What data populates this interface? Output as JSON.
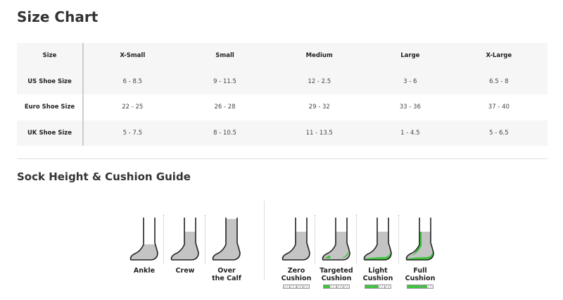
{
  "title": "Size Chart",
  "table": {
    "headers": [
      "Size",
      "X-Small",
      "Small",
      "Medium",
      "Large",
      "X-Large"
    ],
    "rows": [
      [
        "US Shoe Size",
        "6 - 8.5",
        "9 - 11.5",
        "12 - 2.5",
        "3 - 6",
        "6.5 - 8"
      ],
      [
        "Euro Shoe Size",
        "22 - 25",
        "26 - 28",
        "29 - 32",
        "33 - 36",
        "37 - 40"
      ],
      [
        "UK Shoe Size",
        "5 - 7.5",
        "8 - 10.5",
        "11 - 13.5",
        "1 - 4.5",
        "5 - 6.5"
      ]
    ]
  },
  "guide_title": "Sock Height & Cushion Guide",
  "heights": [
    {
      "l1": "Ankle",
      "l2": "",
      "level": "ankle"
    },
    {
      "l1": "Crew",
      "l2": "",
      "level": "crew"
    },
    {
      "l1": "Over",
      "l2": "the Calf",
      "level": "calf"
    }
  ],
  "cushions": [
    {
      "l1": "Zero",
      "l2": "Cushion",
      "level": 0
    },
    {
      "l1": "Targeted",
      "l2": "Cushion",
      "level": 1
    },
    {
      "l1": "Light",
      "l2": "Cushion",
      "level": 2
    },
    {
      "l1": "Full",
      "l2": "Cushion",
      "level": 3
    }
  ],
  "colors": {
    "cushion": "#3cc43c",
    "sock": "#c4c4c4"
  }
}
